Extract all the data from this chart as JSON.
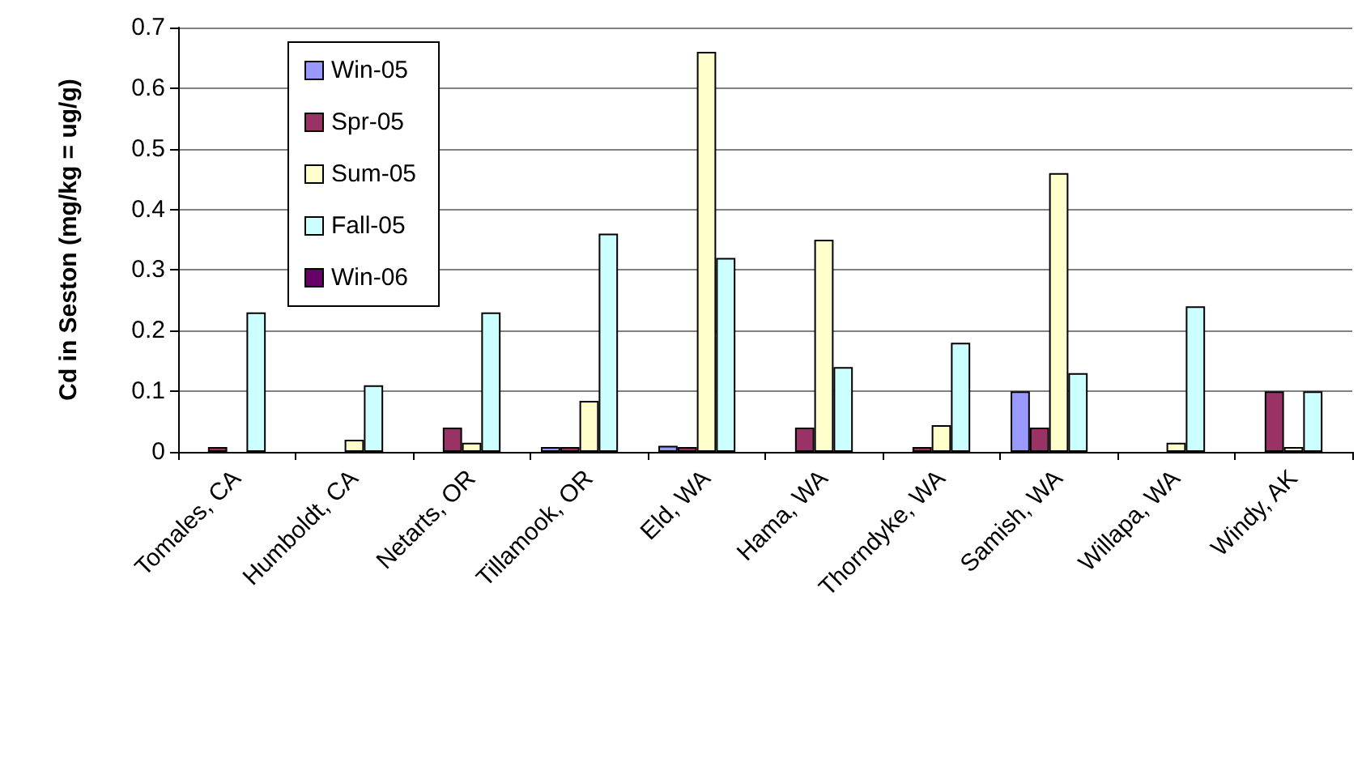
{
  "chart_data": {
    "type": "bar",
    "ylabel": "Cd in Seston (mg/kg = ug/g)",
    "categories": [
      "Tomales, CA",
      "Humboldt, CA",
      "Netarts, OR",
      "Tillamook, OR",
      "Eld, WA",
      "Hama, WA",
      "Thorndyke, WA",
      "Samish, WA",
      "Willapa, WA",
      "Windy, AK"
    ],
    "series": [
      {
        "name": "Win-05",
        "color": "#9999ff",
        "values": [
          null,
          null,
          null,
          0.004,
          0.01,
          null,
          null,
          0.1,
          null,
          null
        ]
      },
      {
        "name": "Spr-05",
        "color": "#993366",
        "values": [
          0.005,
          null,
          0.04,
          0.004,
          0.005,
          0.04,
          0.005,
          0.04,
          null,
          0.1
        ]
      },
      {
        "name": "Sum-05",
        "color": "#ffffcc",
        "values": [
          null,
          0.02,
          0.015,
          0.084,
          0.66,
          0.35,
          0.044,
          0.46,
          0.015,
          0.005
        ]
      },
      {
        "name": "Fall-05",
        "color": "#ccffff",
        "values": [
          0.23,
          0.11,
          0.23,
          0.36,
          0.32,
          0.14,
          0.18,
          0.13,
          0.24,
          0.1
        ]
      },
      {
        "name": "Win-06",
        "color": "#660066",
        "values": [
          null,
          null,
          null,
          null,
          null,
          null,
          null,
          null,
          null,
          null
        ]
      }
    ],
    "ylim": [
      0,
      0.7
    ],
    "yticks": [
      0,
      0.1,
      0.2,
      0.3,
      0.4,
      0.5,
      0.6,
      0.7
    ],
    "grid": "y",
    "legend": "top left"
  }
}
